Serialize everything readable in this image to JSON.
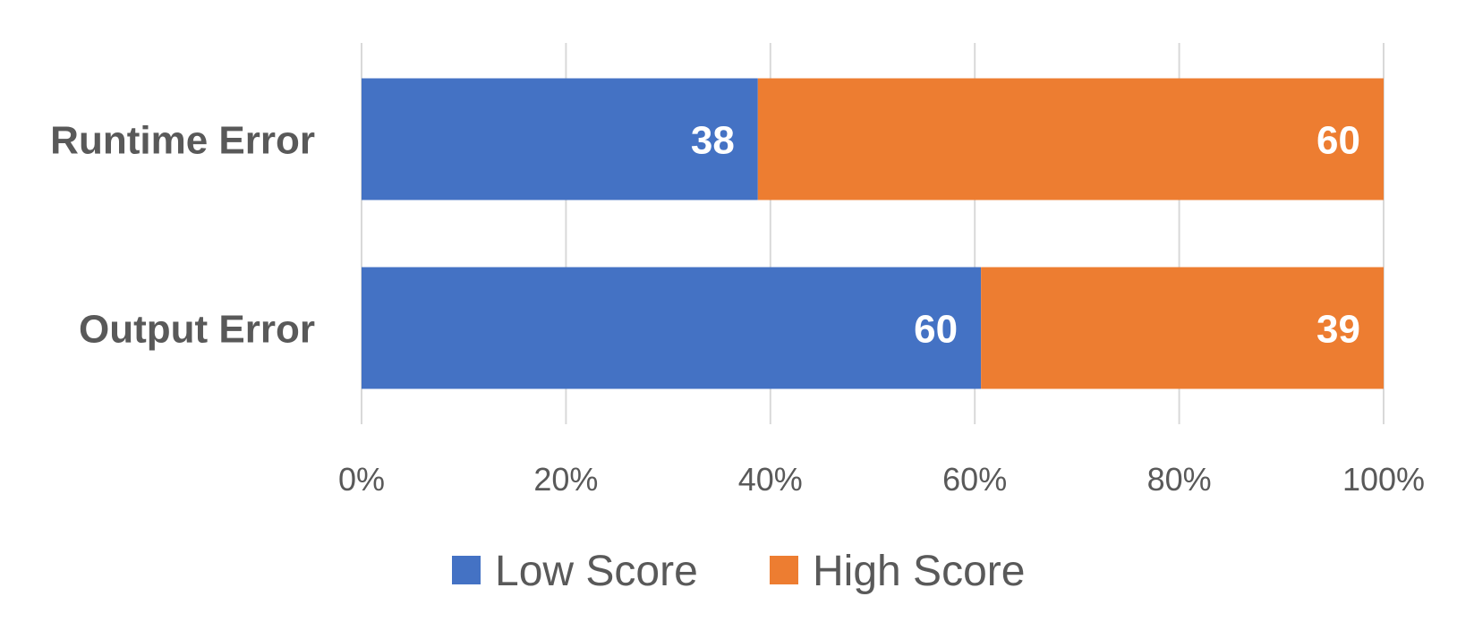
{
  "chart_data": {
    "type": "bar",
    "orientation": "horizontal",
    "stacked": "percent",
    "categories": [
      "Runtime Error",
      "Output Error"
    ],
    "series": [
      {
        "name": "Low Score",
        "values": [
          38,
          60
        ],
        "color": "#4472C4"
      },
      {
        "name": "High Score",
        "values": [
          60,
          39
        ],
        "color": "#ED7D31"
      }
    ],
    "x_ticks": [
      "0%",
      "20%",
      "40%",
      "60%",
      "80%",
      "100%"
    ],
    "xlim": [
      0,
      100
    ],
    "grid": true,
    "legend_position": "bottom",
    "data_labels": true
  }
}
